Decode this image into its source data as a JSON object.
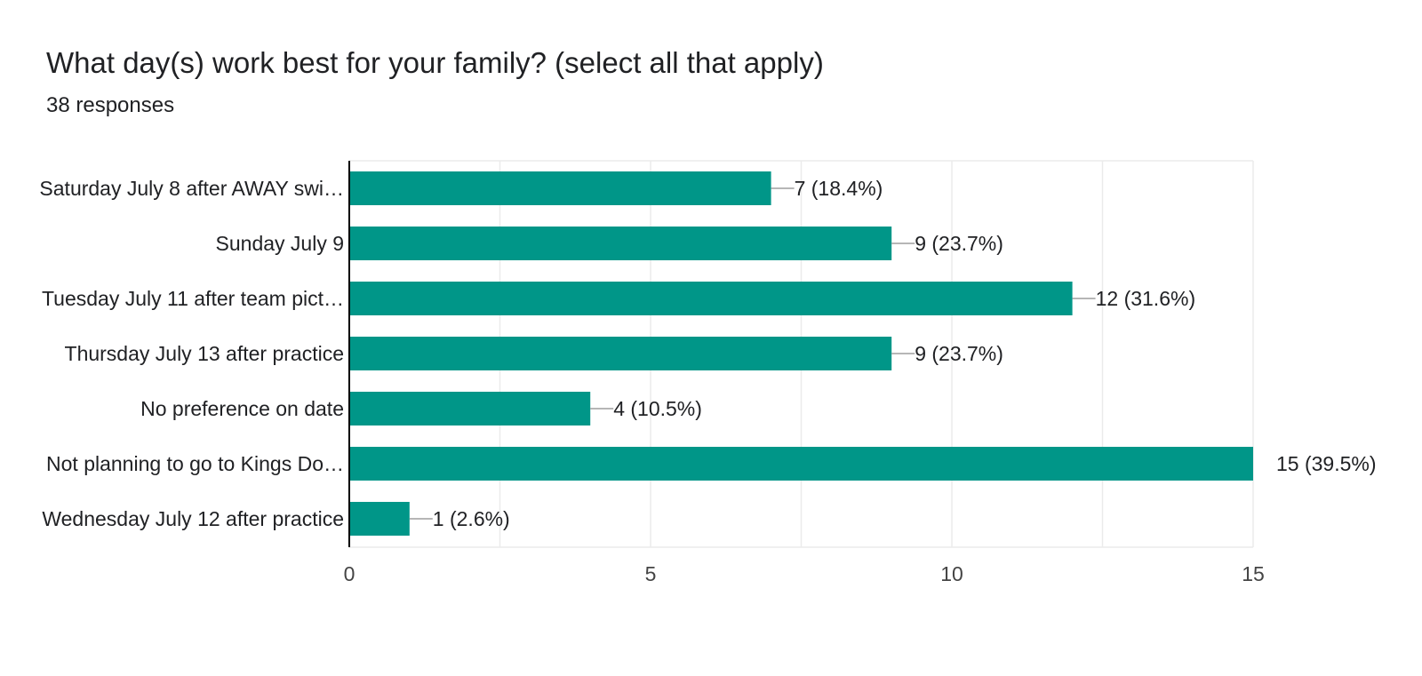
{
  "header": {
    "title": "What day(s) work best for your family? (select all that apply)",
    "subtitle": "38 responses"
  },
  "colors": {
    "bar": "#009688",
    "grid": "#ebebeb",
    "axis": "#000000",
    "leader": "#9e9e9e"
  },
  "chart_data": {
    "type": "bar",
    "orientation": "horizontal",
    "categories": [
      "Saturday July 8 after AWAY swi…",
      "Sunday July 9",
      "Tuesday July 11 after team pict…",
      "Thursday July 13 after practice",
      "No preference on date",
      "Not planning to go to Kings Do…",
      "Wednesday July 12 after practice"
    ],
    "values": [
      7,
      9,
      12,
      9,
      4,
      15,
      1
    ],
    "data_labels": [
      "7 (18.4%)",
      "9 (23.7%)",
      "12 (31.6%)",
      "9 (23.7%)",
      "4 (10.5%)",
      "15 (39.5%)",
      "1 (2.6%)"
    ],
    "xlim": [
      0,
      15
    ],
    "xticks": [
      0,
      5,
      10,
      15
    ],
    "grid": true
  }
}
